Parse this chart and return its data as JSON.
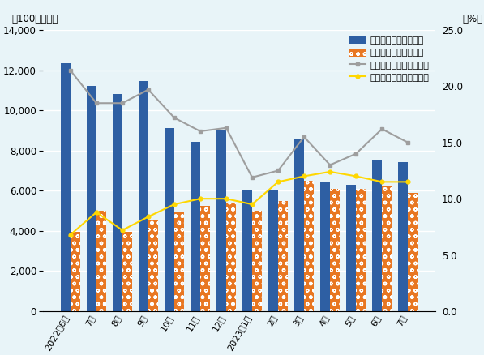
{
  "categories": [
    "2022年6月",
    "7月",
    "8月",
    "9月",
    "10月",
    "11月",
    "12月",
    "2023年1月",
    "2月",
    "3月",
    "4月",
    "5月",
    "6月",
    "7月"
  ],
  "semi_values": [
    12349,
    11200,
    10800,
    11450,
    9100,
    8450,
    9000,
    6001,
    6000,
    8543,
    6400,
    6300,
    7500,
    7443
  ],
  "car_values": [
    3934,
    5000,
    3950,
    4500,
    4950,
    5250,
    5350,
    5000,
    5500,
    6500,
    6100,
    6100,
    6200,
    5900
  ],
  "semi_ratio": [
    21.4,
    18.5,
    18.5,
    19.7,
    17.2,
    16.0,
    16.3,
    11.9,
    12.5,
    15.5,
    13.0,
    14.0,
    16.2,
    15.0
  ],
  "car_ratio": [
    6.8,
    8.8,
    7.2,
    8.4,
    9.5,
    10.0,
    10.0,
    9.5,
    11.5,
    12.0,
    12.4,
    12.0,
    11.5,
    11.5
  ],
  "semi_bar_color": "#2E5FA3",
  "car_bar_color": "#E87722",
  "semi_line_color": "#9E9E9E",
  "car_line_color": "#FFD700",
  "background_color": "#E8F4F8",
  "left_ylabel": "（100万ドル）",
  "right_ylabel": "（%）",
  "left_ylim": [
    0,
    14000
  ],
  "right_ylim": [
    0,
    25.0
  ],
  "left_yticks": [
    0,
    2000,
    4000,
    6000,
    8000,
    10000,
    12000,
    14000
  ],
  "right_yticks": [
    0.0,
    5.0,
    10.0,
    15.0,
    20.0,
    25.0
  ],
  "legend_labels": [
    "半導体・金額（左軸）",
    "自動車・金額（左軸）",
    "半導体・構成比（右軸）",
    "自動車・構成比（右軸）"
  ]
}
